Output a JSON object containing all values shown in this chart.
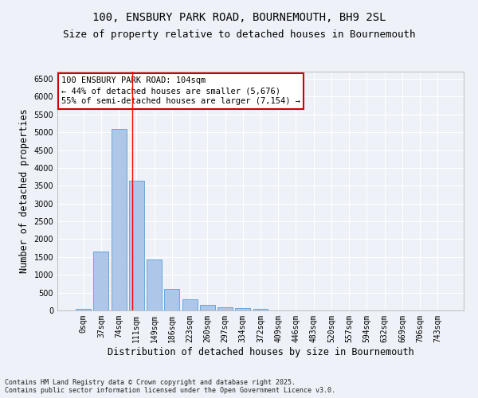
{
  "title_line1": "100, ENSBURY PARK ROAD, BOURNEMOUTH, BH9 2SL",
  "title_line2": "Size of property relative to detached houses in Bournemouth",
  "xlabel": "Distribution of detached houses by size in Bournemouth",
  "ylabel": "Number of detached properties",
  "bar_color": "#aec6e8",
  "bar_edge_color": "#5a9fd4",
  "background_color": "#eef2f8",
  "grid_color": "#ffffff",
  "categories": [
    "0sqm",
    "37sqm",
    "74sqm",
    "111sqm",
    "149sqm",
    "186sqm",
    "223sqm",
    "260sqm",
    "297sqm",
    "334sqm",
    "372sqm",
    "409sqm",
    "446sqm",
    "483sqm",
    "520sqm",
    "557sqm",
    "594sqm",
    "632sqm",
    "669sqm",
    "706sqm",
    "743sqm"
  ],
  "values": [
    55,
    1650,
    5100,
    3630,
    1420,
    610,
    310,
    155,
    100,
    70,
    35,
    10,
    5,
    2,
    1,
    0,
    0,
    0,
    0,
    0,
    0
  ],
  "ylim": [
    0,
    6700
  ],
  "yticks": [
    0,
    500,
    1000,
    1500,
    2000,
    2500,
    3000,
    3500,
    4000,
    4500,
    5000,
    5500,
    6000,
    6500
  ],
  "annotation_text": "100 ENSBURY PARK ROAD: 104sqm\n← 44% of detached houses are smaller (5,676)\n55% of semi-detached houses are larger (7,154) →",
  "vline_x": 2.75,
  "annotation_box_color": "#ffffff",
  "annotation_box_edge": "#cc0000",
  "footnote": "Contains HM Land Registry data © Crown copyright and database right 2025.\nContains public sector information licensed under the Open Government Licence v3.0.",
  "title_fontsize": 10,
  "subtitle_fontsize": 9,
  "axis_label_fontsize": 8.5,
  "tick_fontsize": 7,
  "annotation_fontsize": 7.5,
  "footnote_fontsize": 6.0
}
